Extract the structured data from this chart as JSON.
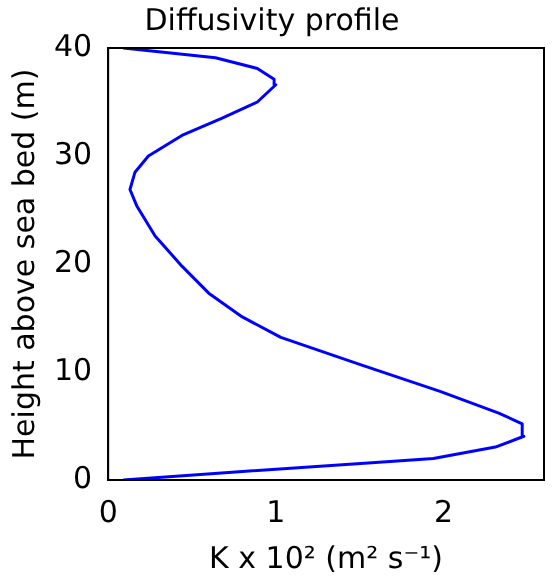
{
  "chart_data": {
    "type": "line",
    "title": "Diffusivity profile",
    "xlabel": "K x 10² (m² s⁻¹)",
    "ylabel": "Height above sea bed (m)",
    "series": [
      {
        "color": "#0000ff",
        "x": [
          0.09,
          0.76,
          1.66,
          1.94,
          2.31,
          2.48,
          2.47,
          2.33,
          1.98,
          1.5,
          1.03,
          0.8,
          0.6,
          0.44,
          0.28,
          0.17,
          0.13,
          0.16,
          0.24,
          0.44,
          0.68,
          0.89,
          1.0,
          0.99,
          0.89,
          0.64,
          0.09
        ],
        "values": [
          0,
          0.75,
          1.7,
          2.0,
          3.05,
          4.05,
          5.2,
          6.2,
          8.2,
          10.7,
          13.2,
          15.1,
          17.3,
          19.8,
          22.6,
          25.4,
          26.9,
          28.5,
          30.0,
          31.9,
          33.5,
          35.0,
          36.6,
          37.1,
          38.1,
          39.1,
          40
        ]
      }
    ],
    "xlim": [
      0,
      2.6
    ],
    "xticks": [
      0,
      1,
      2
    ],
    "ylim": [
      0,
      40
    ],
    "yticks": [
      0,
      10,
      20,
      30,
      40
    ],
    "grid": false,
    "legend": false,
    "marker": "none",
    "line_style": "solid"
  }
}
